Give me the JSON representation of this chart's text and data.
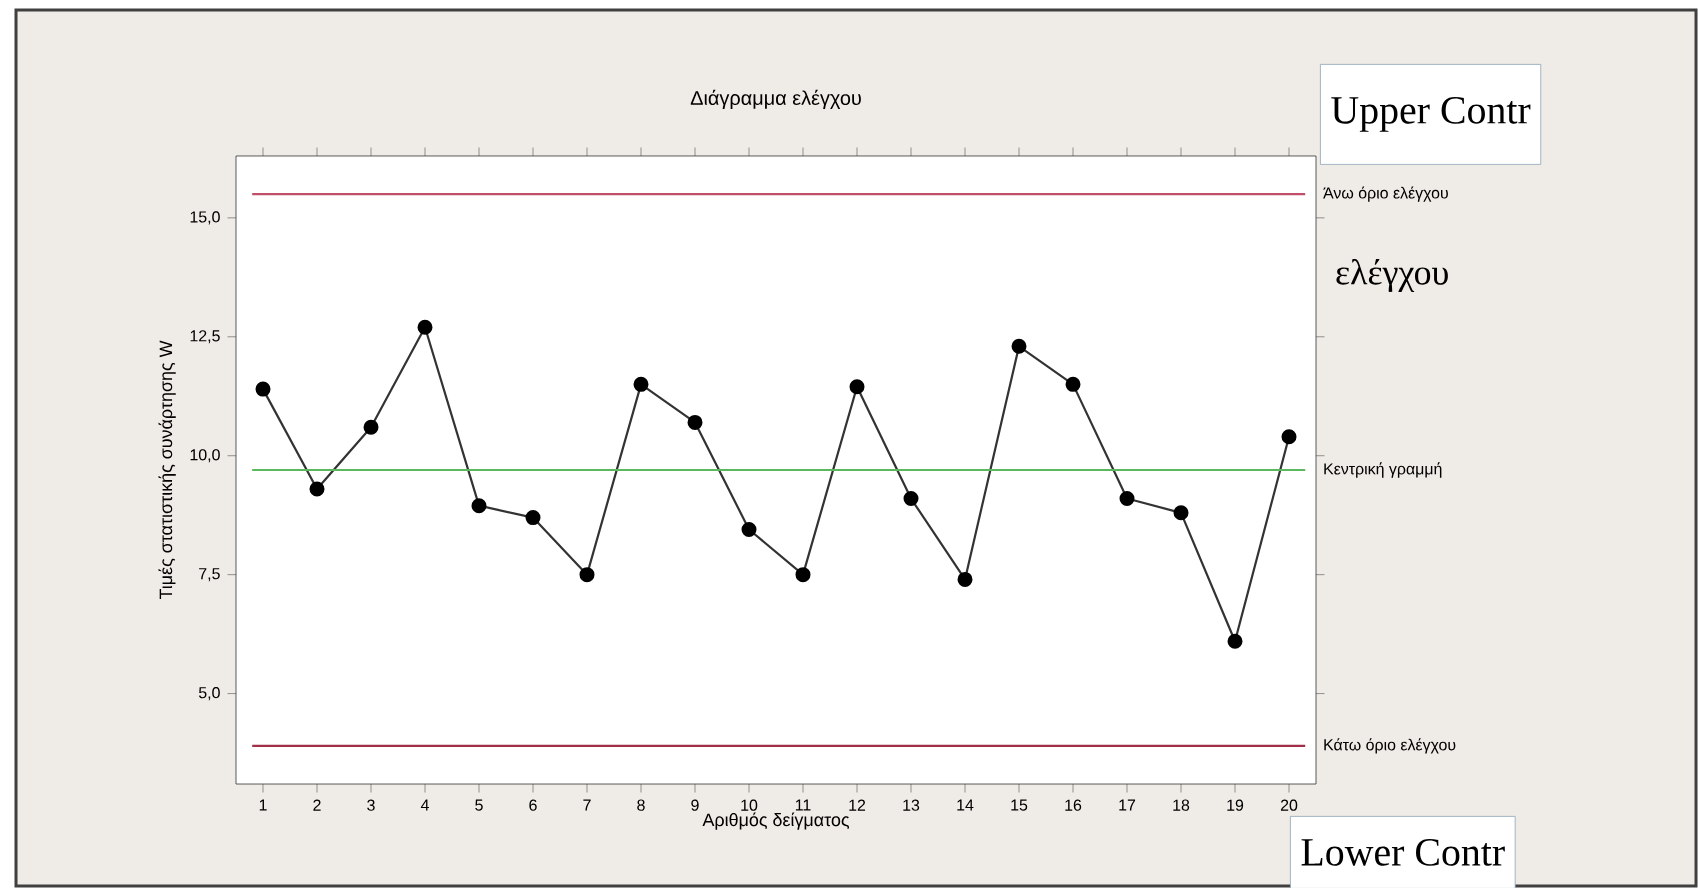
{
  "chart_data": {
    "type": "line",
    "title": "Διάγραμμα ελέγχου",
    "xlabel": "Αριθμός δείγματος",
    "ylabel": "Τιμές στατιστικής συνάρτησης W",
    "x": [
      1,
      2,
      3,
      4,
      5,
      6,
      7,
      8,
      9,
      10,
      11,
      12,
      13,
      14,
      15,
      16,
      17,
      18,
      19,
      20
    ],
    "series": [
      {
        "color": "#333333",
        "values": [
          11.4,
          9.3,
          10.6,
          12.7,
          8.95,
          8.7,
          7.5,
          11.5,
          10.7,
          8.45,
          7.5,
          11.45,
          9.1,
          7.4,
          12.3,
          11.5,
          9.1,
          8.8,
          6.1,
          10.4
        ]
      }
    ],
    "xlim": [
      0.5,
      20.5
    ],
    "ylim": [
      3.1,
      16.3
    ],
    "xticks": [
      1,
      2,
      3,
      4,
      5,
      6,
      7,
      8,
      9,
      10,
      11,
      12,
      13,
      14,
      15,
      16,
      17,
      18,
      19,
      20
    ],
    "yticks": [
      {
        "value": 5,
        "label": "5,0"
      },
      {
        "value": 7.5,
        "label": "7,5"
      },
      {
        "value": 10,
        "label": "10,0"
      },
      {
        "value": 12.5,
        "label": "12,5"
      },
      {
        "value": 15,
        "label": "15,0"
      }
    ],
    "marker": "circle",
    "line_style": "solid",
    "ref_lines": [
      {
        "axis": "y",
        "value": 15.5,
        "label": "Άνω όριο ελέγχου",
        "color": "#c0506a"
      },
      {
        "axis": "y",
        "value": 9.7,
        "label": "Κεντρική γραμμή",
        "color": "#5cb85c"
      },
      {
        "axis": "y",
        "value": 3.9,
        "label": "Κάτω όριο ελέγχου",
        "color": "#a0304a"
      }
    ],
    "annotations": [
      "Upper Contr",
      "ελέγχου",
      "Lower Contr"
    ]
  }
}
